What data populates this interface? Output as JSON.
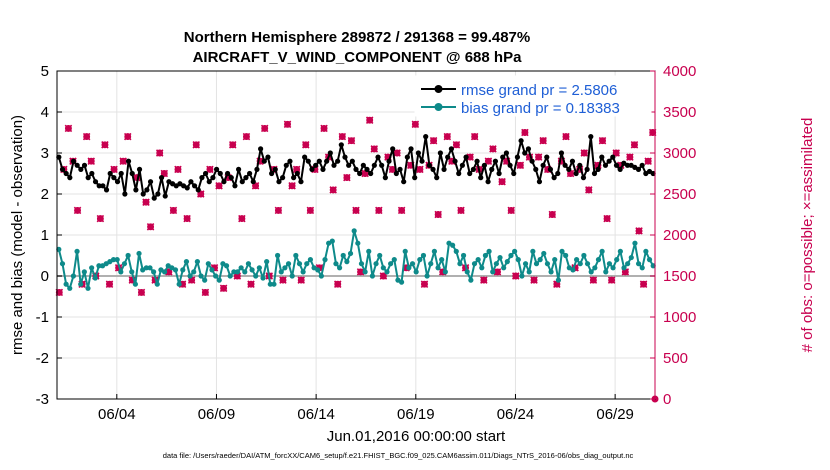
{
  "chart_data": {
    "type": "line",
    "title": "Northern Hemisphere 289872 / 291368 = 99.487%",
    "subtitle": "AIRCRAFT_V_WIND_COMPONENT @ 688 hPa",
    "xlabel": "Jun.01,2016 00:00:00 start",
    "ylabel": "rmse and bias (model - observation)",
    "y2label": "# of obs: o=possible; ×=assimilated",
    "footer": "data file: /Users/raeder/DAI/ATM_forcXX/CAM6_setup/f.e21.FHIST_BGC.f09_025.CAM6assim.011/Diags_NTrS_2016-06/obs_diag_output.nc",
    "x_range_days": [
      1.0,
      31.0
    ],
    "xticks": [
      {
        "label": "06/04",
        "day": 4
      },
      {
        "label": "06/09",
        "day": 9
      },
      {
        "label": "06/14",
        "day": 14
      },
      {
        "label": "06/19",
        "day": 19
      },
      {
        "label": "06/24",
        "day": 24
      },
      {
        "label": "06/29",
        "day": 29
      }
    ],
    "ylim": [
      -3,
      5
    ],
    "yticks": [
      "-3",
      "-2",
      "-1",
      "0",
      "1",
      "2",
      "3",
      "4",
      "5"
    ],
    "y2lim": [
      0,
      4000
    ],
    "y2ticks": [
      "0",
      "500",
      "1000",
      "1500",
      "2000",
      "2500",
      "3000",
      "3500",
      "4000"
    ],
    "grid": true,
    "legend_position": "top-right",
    "series": [
      {
        "name": "rmse grand pr = 2.5806",
        "axis": "left",
        "color": "#000000",
        "values": [
          2.9,
          2.6,
          2.5,
          2.4,
          2.8,
          2.7,
          2.6,
          2.7,
          2.4,
          2.5,
          2.3,
          2.2,
          2.2,
          2.1,
          2.5,
          2.4,
          2.3,
          2.5,
          2.0,
          2.8,
          2.5,
          2.1,
          2.6,
          2.0,
          2.1,
          2.3,
          1.9,
          2.0,
          2.4,
          1.95,
          2.3,
          2.25,
          2.2,
          2.25,
          2.2,
          2.15,
          2.3,
          2.2,
          2.1,
          2.4,
          2.5,
          2.3,
          2.4,
          2.6,
          2.5,
          2.3,
          2.5,
          2.4,
          2.2,
          2.6,
          2.3,
          2.4,
          2.5,
          2.3,
          2.6,
          3.1,
          2.8,
          2.9,
          2.5,
          2.6,
          2.3,
          2.4,
          2.7,
          2.8,
          2.4,
          2.5,
          2.3,
          2.9,
          2.8,
          2.6,
          2.7,
          2.8,
          2.6,
          2.8,
          3.0,
          2.7,
          2.8,
          3.2,
          2.9,
          2.7,
          2.8,
          2.6,
          2.5,
          2.7,
          2.6,
          2.5,
          2.7,
          2.9,
          2.7,
          2.4,
          2.8,
          3.1,
          2.5,
          2.6,
          2.3,
          2.9,
          3.1,
          2.4,
          3.0,
          2.8,
          3.4,
          2.7,
          2.6,
          2.4,
          3.0,
          2.6,
          2.9,
          3.1,
          2.8,
          2.5,
          2.7,
          2.9,
          2.5,
          2.6,
          2.8,
          2.4,
          2.7,
          2.3,
          2.6,
          2.8,
          2.5,
          2.9,
          3.0,
          2.7,
          2.5,
          2.9,
          3.3,
          3.0,
          3.1,
          2.8,
          2.6,
          2.3,
          2.7,
          2.9,
          2.6,
          2.4,
          2.5,
          3.0,
          2.7,
          2.6,
          2.8,
          2.5,
          2.7,
          2.4,
          2.6,
          3.4,
          2.5,
          2.6,
          2.9,
          2.7,
          2.8,
          2.9,
          2.7,
          2.6,
          2.75,
          2.7,
          2.7,
          2.65,
          2.6,
          2.7,
          2.5,
          2.55,
          2.5
        ]
      },
      {
        "name": "bias grand pr = 0.18383",
        "axis": "left",
        "color": "#0e8a8a",
        "values": [
          0.65,
          0.3,
          -0.2,
          -0.3,
          0.0,
          0.6,
          -0.2,
          0.1,
          -0.3,
          0.2,
          -0.05,
          0.25,
          0.25,
          0.3,
          0.35,
          0.4,
          0.4,
          0.1,
          0.3,
          0.5,
          0.1,
          -0.2,
          0.55,
          0.15,
          0.2,
          0.2,
          0.1,
          -0.2,
          0.15,
          0.1,
          0.25,
          0.2,
          0.15,
          -0.2,
          0.15,
          0.35,
          0.0,
          0.1,
          0.35,
          0.0,
          -0.1,
          0.3,
          0.15,
          0.0,
          -0.1,
          0.3,
          0.25,
          0.0,
          0.1,
          0.1,
          0.2,
          0.1,
          0.3,
          0.15,
          0.0,
          0.2,
          -0.05,
          0.35,
          -0.2,
          -0.2,
          0.5,
          0.1,
          0.2,
          0.3,
          0.0,
          0.5,
          0.3,
          0.1,
          0.3,
          0.4,
          0.2,
          0.15,
          0.0,
          0.4,
          0.8,
          0.85,
          0.3,
          0.2,
          0.5,
          0.35,
          0.55,
          1.1,
          0.8,
          0.3,
          0.1,
          0.6,
          0.0,
          0.3,
          0.5,
          0.2,
          0.1,
          0.3,
          0.4,
          -0.1,
          -0.15,
          0.6,
          0.2,
          0.3,
          0.1,
          0.4,
          0.5,
          0.0,
          0.3,
          0.6,
          0.2,
          0.4,
          0.1,
          0.8,
          0.75,
          0.6,
          0.3,
          0.5,
          0.1,
          -0.1,
          0.3,
          0.4,
          0.2,
          0.5,
          0.6,
          0.1,
          0.3,
          0.45,
          0.2,
          0.35,
          0.5,
          0.6,
          0.4,
          0.0,
          0.3,
          0.1,
          0.6,
          0.3,
          0.4,
          0.55,
          0.3,
          0.1,
          0.4,
          -0.1,
          0.6,
          0.5,
          0.2,
          0.15,
          0.4,
          0.3,
          0.5,
          0.3,
          0.1,
          0.2,
          0.4,
          0.6,
          0.1,
          0.3,
          0.2,
          0.4,
          0.6,
          0.2,
          0.3,
          0.45,
          0.8,
          0.3,
          0.2,
          0.6,
          0.4,
          0.25
        ]
      },
      {
        "name": "obs possible",
        "axis": "right",
        "marker": "o",
        "color": "#c8004f",
        "values": [
          1300,
          2800,
          3300,
          2900,
          2300,
          1400,
          3200,
          2900,
          1500,
          2200,
          3100,
          1400,
          2800,
          1600,
          2900,
          3200,
          1450,
          2700,
          1300,
          2400,
          2100,
          1450,
          3000,
          2750,
          1550,
          2300,
          2800,
          1400,
          2200,
          1450,
          3100,
          2500,
          1300,
          2800,
          1600,
          2600,
          1350,
          2700,
          3100,
          1500,
          2200,
          3200,
          1400,
          2600,
          2900,
          3300,
          1500,
          2800,
          2300,
          1450,
          3350,
          2600,
          2800,
          1450,
          3100,
          2300,
          2800,
          1600,
          3300,
          2950,
          2550,
          1400,
          3200,
          2700,
          3150,
          2300,
          1550,
          2750,
          3400,
          3050,
          2300,
          1500,
          2950,
          2800,
          3000,
          2300,
          1600,
          2850,
          3350,
          2800,
          1400,
          2850,
          3150,
          2250,
          1550,
          3200,
          2900,
          3100,
          2300,
          1600,
          2950,
          3200,
          2800,
          1450,
          2900,
          3050,
          1550,
          2650,
          2900,
          2300,
          1500,
          2850,
          3250,
          2950,
          1450,
          2950,
          3150,
          2800,
          2250,
          1400,
          2900,
          3200,
          2750,
          1600,
          2800,
          3000,
          2550,
          1450,
          2850,
          3150,
          2200,
          1450,
          3000,
          2850,
          1550,
          2950,
          3100,
          2050,
          1400,
          2900,
          3250
        ]
      },
      {
        "name": "obs assimilated",
        "axis": "right",
        "marker": "x",
        "color": "#c8004f",
        "values": [
          1300,
          2800,
          3300,
          2900,
          2300,
          1400,
          3200,
          2900,
          1500,
          2200,
          3100,
          1400,
          2800,
          1600,
          2900,
          3200,
          1450,
          2700,
          1300,
          2400,
          2100,
          1450,
          3000,
          2750,
          1550,
          2300,
          2800,
          1400,
          2200,
          1450,
          3100,
          2500,
          1300,
          2800,
          1600,
          2600,
          1350,
          2700,
          3100,
          1500,
          2200,
          3200,
          1400,
          2600,
          2900,
          3300,
          1500,
          2800,
          2300,
          1450,
          3350,
          2600,
          2800,
          1450,
          3100,
          2300,
          2800,
          1600,
          3300,
          2950,
          2550,
          1400,
          3200,
          2700,
          3150,
          2300,
          1550,
          2750,
          3400,
          3050,
          2300,
          1500,
          2950,
          2800,
          3000,
          2300,
          1600,
          2850,
          3350,
          2800,
          1400,
          2850,
          3150,
          2250,
          1550,
          3200,
          2900,
          3100,
          2300,
          1600,
          2950,
          3200,
          2800,
          1450,
          2900,
          3050,
          1550,
          2650,
          2900,
          2300,
          1500,
          2850,
          3250,
          2950,
          1450,
          2950,
          3150,
          2800,
          2250,
          1400,
          2900,
          3200,
          2750,
          1600,
          2800,
          3000,
          2550,
          1450,
          2850,
          3150,
          2200,
          1450,
          3000,
          2850,
          1550,
          2950,
          3100,
          2050,
          1400,
          2900,
          3250
        ]
      }
    ],
    "zero_line": 0,
    "last_obs_point": 0
  }
}
